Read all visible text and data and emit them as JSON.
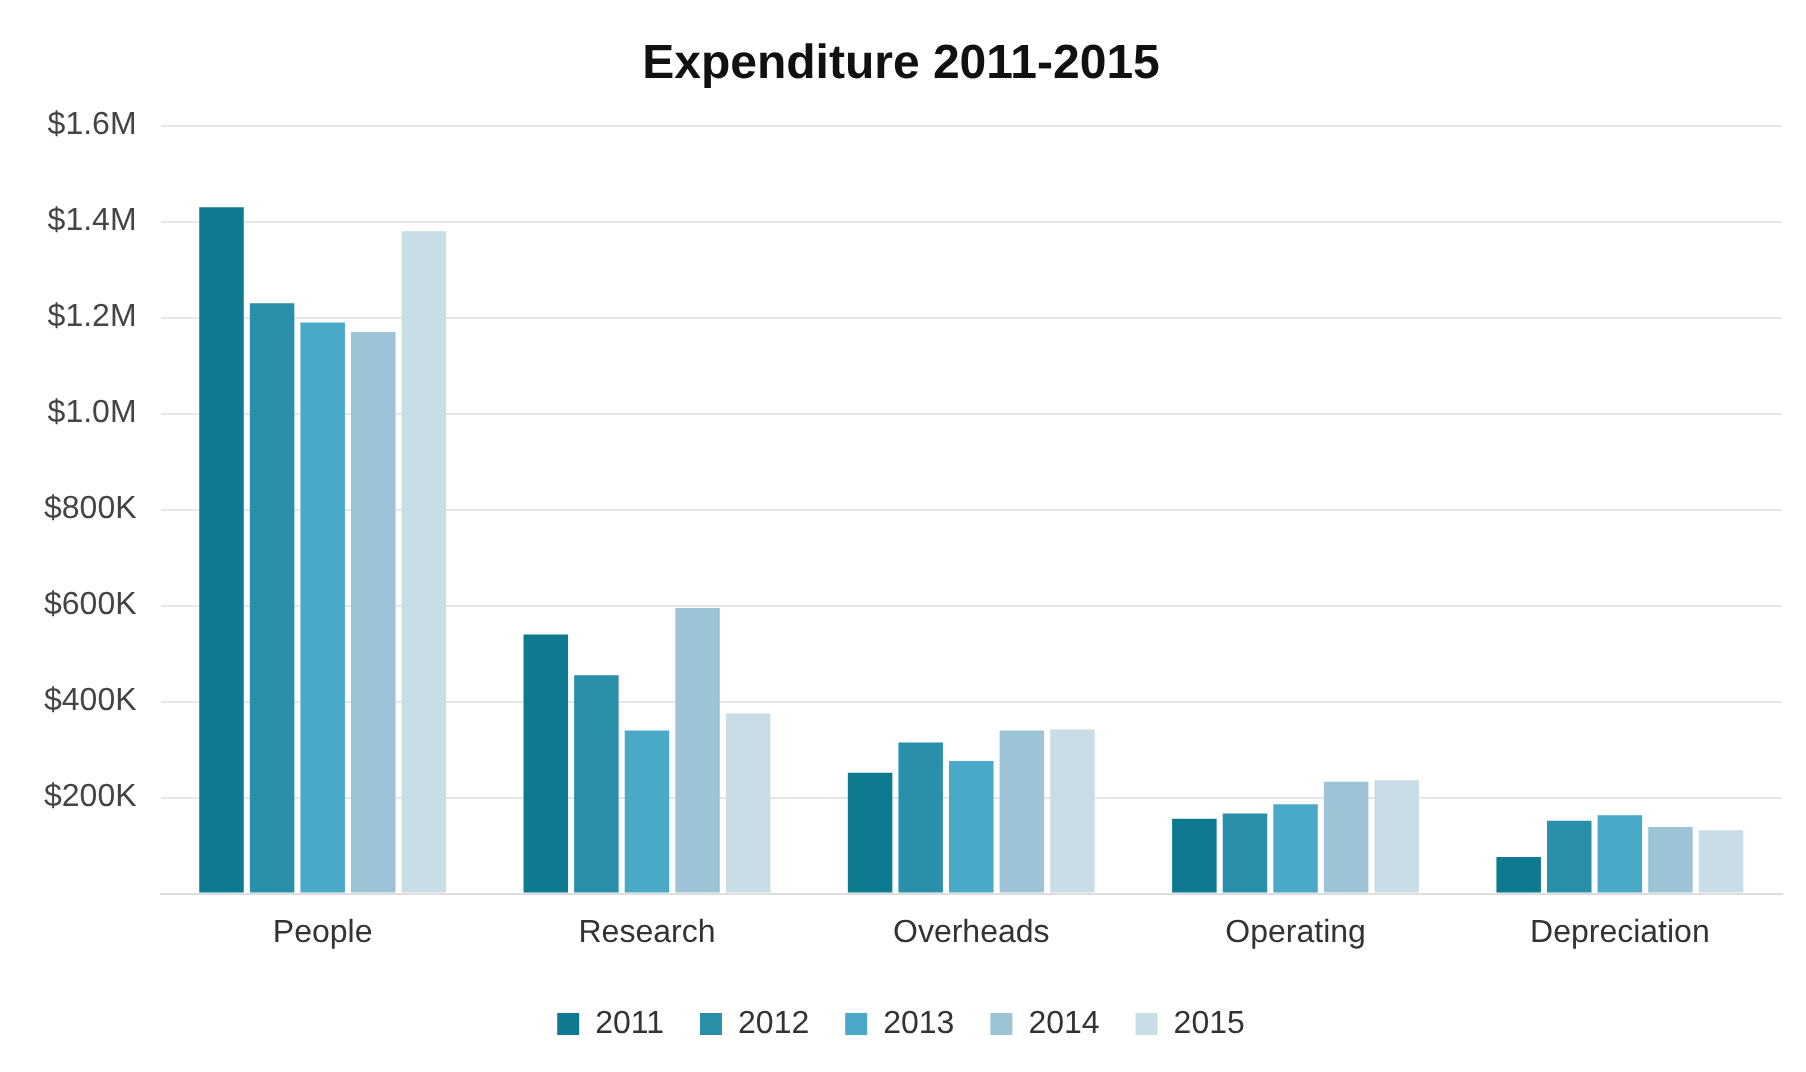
{
  "chart_data": {
    "type": "bar",
    "title": "Expenditure 2011-2015",
    "categories": [
      "People",
      "Research",
      "Overheads",
      "Operating",
      "Depreciation"
    ],
    "series": [
      {
        "name": "2011",
        "color": "#0e7a8f",
        "values": [
          1430000,
          540000,
          252000,
          156000,
          76000
        ]
      },
      {
        "name": "2012",
        "color": "#2a8fa8",
        "values": [
          1230000,
          455000,
          315000,
          167000,
          152000
        ]
      },
      {
        "name": "2013",
        "color": "#4aa9c6",
        "values": [
          1190000,
          340000,
          276000,
          186000,
          163000
        ]
      },
      {
        "name": "2014",
        "color": "#9cc4d6",
        "values": [
          1170000,
          595000,
          340000,
          233000,
          139000
        ]
      },
      {
        "name": "2015",
        "color": "#c9dde6",
        "values": [
          1380000,
          375000,
          342000,
          236000,
          132000
        ]
      }
    ],
    "ylim": [
      0,
      1600000
    ],
    "yticks": [
      {
        "value": 0,
        "label": null
      },
      {
        "value": 200000,
        "label": "$200K"
      },
      {
        "value": 400000,
        "label": "$400K"
      },
      {
        "value": 600000,
        "label": "$600K"
      },
      {
        "value": 800000,
        "label": "$800K"
      },
      {
        "value": 1000000,
        "label": "$1.0M"
      },
      {
        "value": 1200000,
        "label": "$1.2M"
      },
      {
        "value": 1400000,
        "label": "$1.4M"
      },
      {
        "value": 1600000,
        "label": "$1.6M"
      }
    ],
    "grid": "y",
    "legend": "bottom"
  }
}
